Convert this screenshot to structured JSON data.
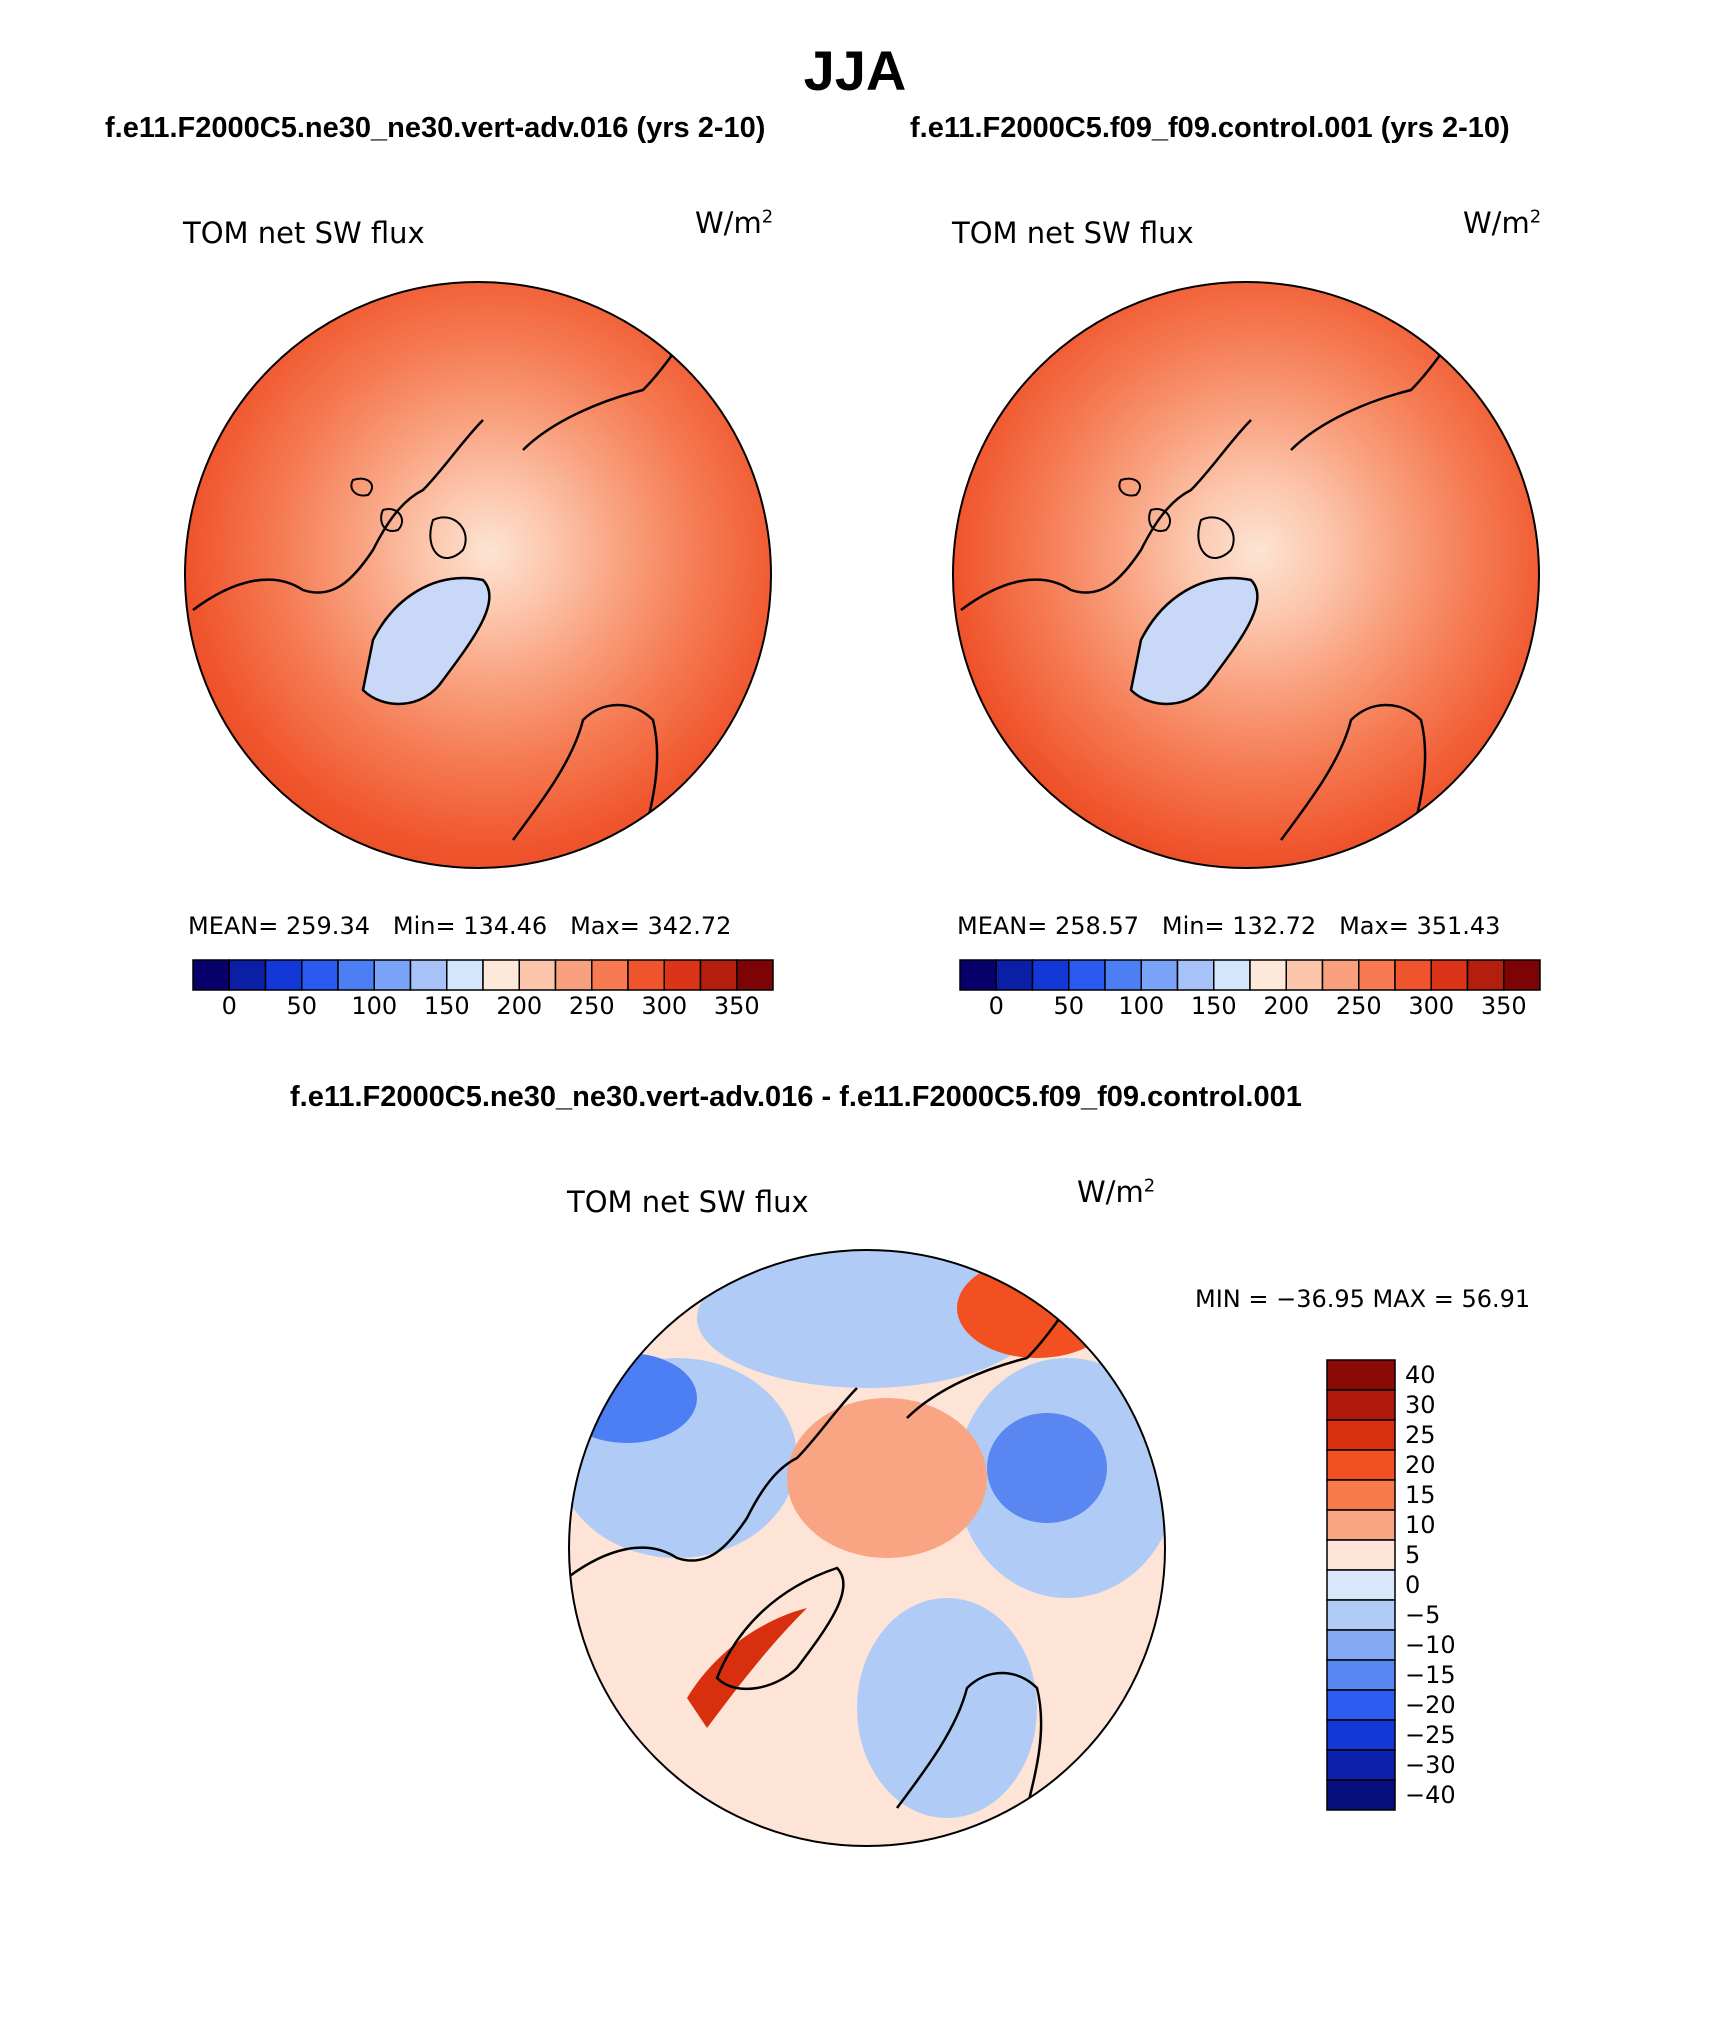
{
  "title": "JJA",
  "panels": [
    {
      "case_title": "f.e11.F2000C5.ne30_ne30.vert-adv.016 (yrs 2-10)",
      "field_label": "TOM net SW flux",
      "units": "W/m",
      "units_sup": "2",
      "stats": {
        "mean_label": "MEAN=",
        "mean": "259.34",
        "min_label": "Min=",
        "min": "134.46",
        "max_label": "Max=",
        "max": "342.72"
      }
    },
    {
      "case_title": "f.e11.F2000C5.f09_f09.control.001 (yrs 2-10)",
      "field_label": "TOM net SW flux",
      "units": "W/m",
      "units_sup": "2",
      "stats": {
        "mean_label": "MEAN=",
        "mean": "258.57",
        "min_label": "Min=",
        "min": "132.72",
        "max_label": "Max=",
        "max": "351.43"
      }
    }
  ],
  "abs_colorbar": {
    "colors": [
      "#08006a",
      "#0a1fa6",
      "#1438d8",
      "#2a5af0",
      "#4c7ff4",
      "#7aa2f6",
      "#a6c2f8",
      "#d4e6fa",
      "#fde8da",
      "#fcc6ac",
      "#f9a07e",
      "#f77a52",
      "#f0542c",
      "#dc3418",
      "#b41e0c",
      "#7c0404"
    ],
    "ticks": [
      "0",
      "50",
      "100",
      "150",
      "200",
      "250",
      "300",
      "350"
    ]
  },
  "diff": {
    "title": "f.e11.F2000C5.ne30_ne30.vert-adv.016 - f.e11.F2000C5.f09_f09.control.001",
    "field_label": "TOM net SW flux",
    "units": "W/m",
    "units_sup": "2",
    "minmax": "MIN = −36.95 MAX =  56.91",
    "colorbar": {
      "colors": [
        "#8a0a06",
        "#b01a0c",
        "#d8300e",
        "#f25020",
        "#f67a4a",
        "#f9a584",
        "#fde4d6",
        "#d8e8fa",
        "#b0ccf6",
        "#84aaf4",
        "#5a86f2",
        "#2e5cf0",
        "#1438d8",
        "#0c20ac",
        "#06107c"
      ],
      "ticks": [
        "40",
        "30",
        "25",
        "20",
        "15",
        "10",
        "5",
        "0",
        "−5",
        "−10",
        "−15",
        "−20",
        "−25",
        "−30",
        "−40"
      ]
    }
  }
}
